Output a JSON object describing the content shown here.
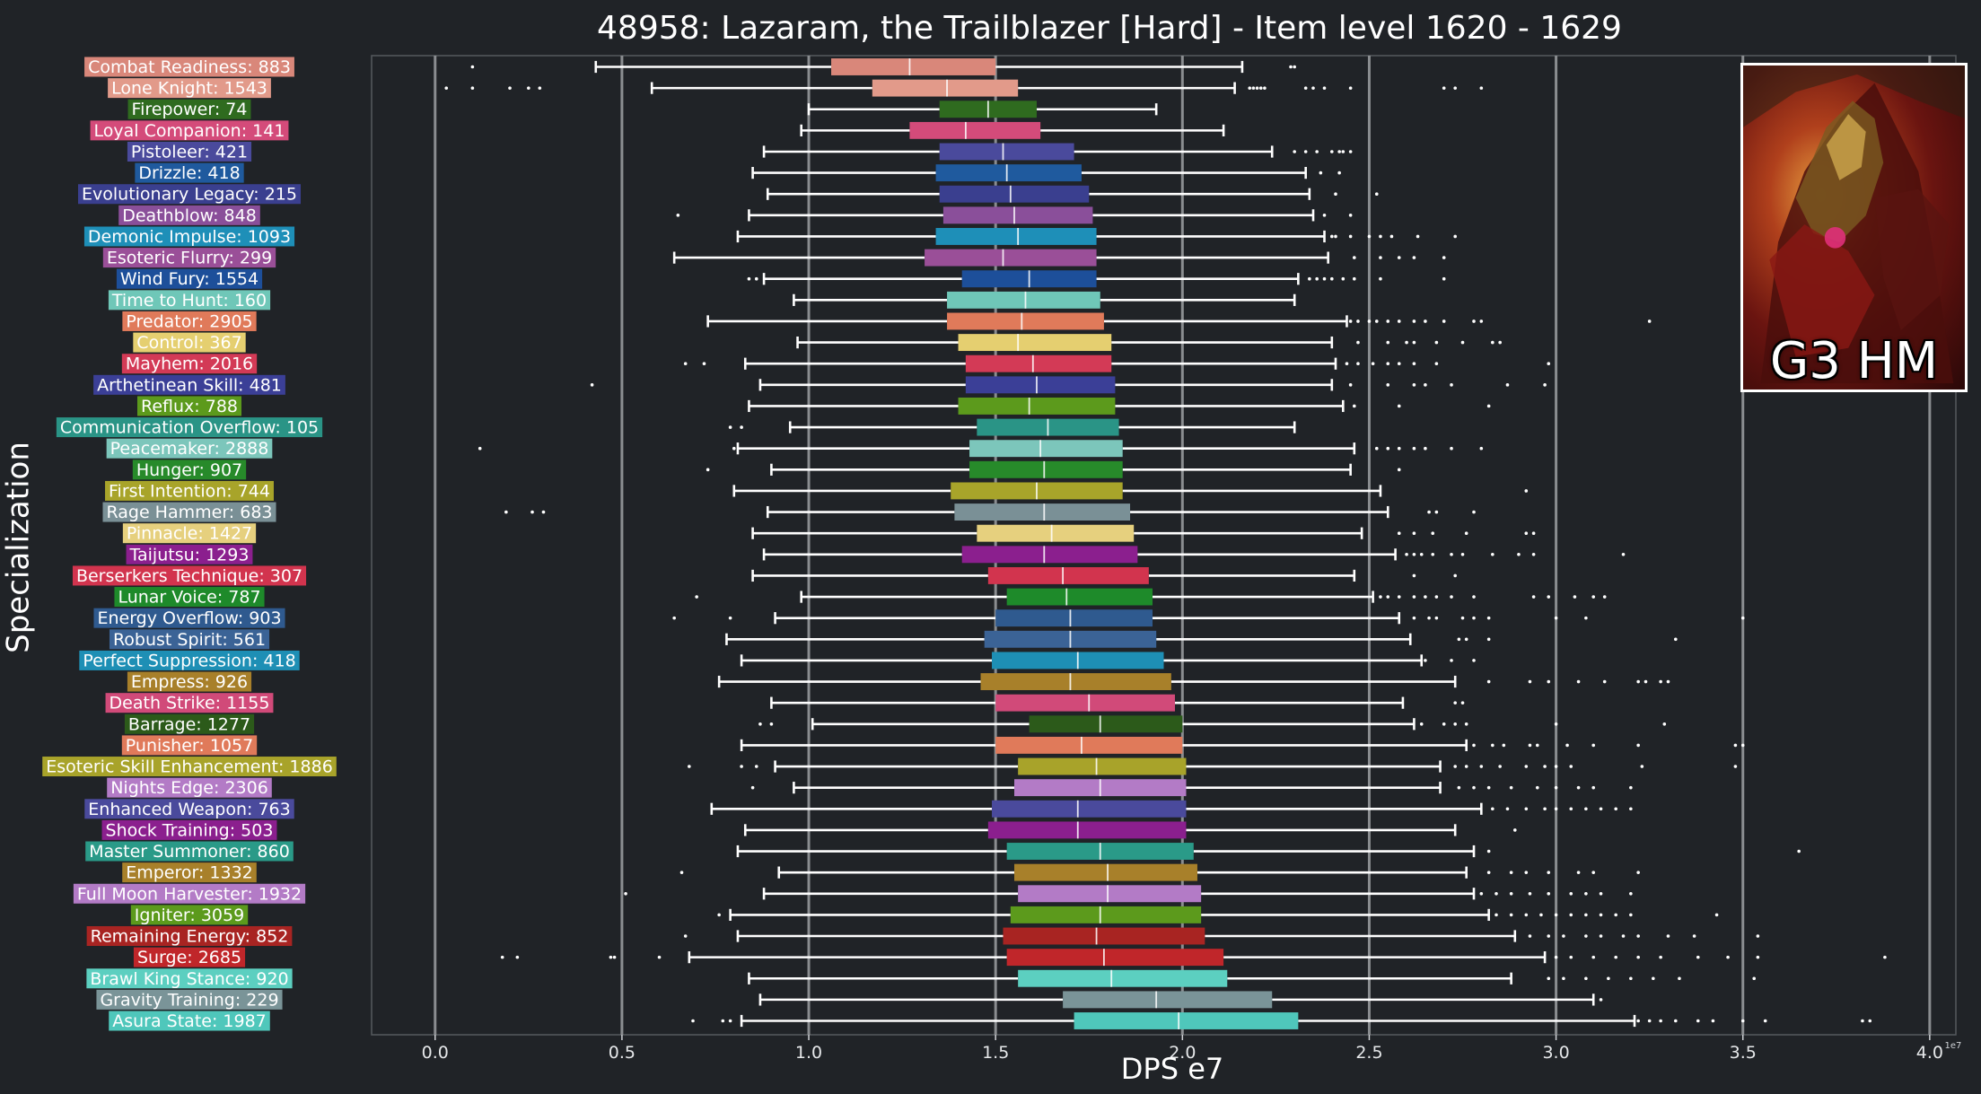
{
  "chart_data": {
    "type": "box",
    "title": "48958: Lazaram, the Trailblazer [Hard] - Item level 1620 - 1629",
    "xlabel": "DPS e7",
    "ylabel": "Specialization",
    "x_scale_label": "1e7",
    "xlim": [
      -0.17,
      4.07
    ],
    "xticks": [
      0.0,
      0.5,
      1.0,
      1.5,
      2.0,
      2.5,
      3.0,
      3.5,
      4.0
    ],
    "xtick_labels": [
      "0.0",
      "0.5",
      "1.0",
      "1.5",
      "2.0",
      "2.5",
      "3.0",
      "3.5",
      "4.0"
    ],
    "grid": "vertical",
    "series": [
      {
        "label": "Combat Readiness: 883",
        "color": "#d9877a",
        "whislo": 0.43,
        "q1": 1.06,
        "median": 1.27,
        "q3": 1.5,
        "whishi": 2.16,
        "fliers": [
          0.1,
          2.29,
          2.3
        ]
      },
      {
        "label": "Lone Knight: 1543",
        "color": "#e29a8a",
        "whislo": 0.58,
        "q1": 1.17,
        "median": 1.37,
        "q3": 1.56,
        "whishi": 2.14,
        "fliers": [
          0.03,
          0.1,
          0.2,
          0.25,
          0.28,
          2.18,
          2.19,
          2.2,
          2.21,
          2.22,
          2.33,
          2.35,
          2.38,
          2.45,
          2.7,
          2.73,
          2.8
        ]
      },
      {
        "label": "Firepower: 74",
        "color": "#2f6b1f",
        "whislo": 1.0,
        "q1": 1.35,
        "median": 1.48,
        "q3": 1.61,
        "whishi": 1.93,
        "fliers": []
      },
      {
        "label": "Loyal Companion: 141",
        "color": "#d44b7a",
        "whislo": 0.98,
        "q1": 1.27,
        "median": 1.42,
        "q3": 1.62,
        "whishi": 2.11,
        "fliers": []
      },
      {
        "label": "Pistoleer: 421",
        "color": "#4a4a9c",
        "whislo": 0.88,
        "q1": 1.35,
        "median": 1.52,
        "q3": 1.71,
        "whishi": 2.24,
        "fliers": [
          2.3,
          2.33,
          2.36,
          2.4,
          2.42,
          2.43,
          2.45
        ]
      },
      {
        "label": "Drizzle: 418",
        "color": "#1f5a9e",
        "whislo": 0.85,
        "q1": 1.34,
        "median": 1.53,
        "q3": 1.73,
        "whishi": 2.33,
        "fliers": [
          2.37,
          2.42
        ]
      },
      {
        "label": "Evolutionary Legacy: 215",
        "color": "#3a3f8f",
        "whislo": 0.89,
        "q1": 1.35,
        "median": 1.54,
        "q3": 1.75,
        "whishi": 2.34,
        "fliers": [
          2.41,
          2.52
        ]
      },
      {
        "label": "Deathblow: 848",
        "color": "#8a4f9a",
        "whislo": 0.84,
        "q1": 1.36,
        "median": 1.55,
        "q3": 1.76,
        "whishi": 2.35,
        "fliers": [
          0.65,
          2.38,
          2.45
        ]
      },
      {
        "label": "Demonic Impulse: 1093",
        "color": "#1e8fb8",
        "whislo": 0.81,
        "q1": 1.34,
        "median": 1.56,
        "q3": 1.77,
        "whishi": 2.38,
        "fliers": [
          2.4,
          2.41,
          2.45,
          2.5,
          2.53,
          2.56,
          2.63,
          2.73
        ]
      },
      {
        "label": "Esoteric Flurry: 299",
        "color": "#9a4f98",
        "whislo": 0.64,
        "q1": 1.31,
        "median": 1.52,
        "q3": 1.77,
        "whishi": 2.39,
        "fliers": [
          2.46,
          2.53,
          2.58,
          2.62,
          2.7
        ]
      },
      {
        "label": "Wind Fury: 1554",
        "color": "#1d4f9a",
        "whislo": 0.88,
        "q1": 1.41,
        "median": 1.59,
        "q3": 1.77,
        "whishi": 2.31,
        "fliers": [
          0.84,
          0.86,
          2.34,
          2.36,
          2.38,
          2.4,
          2.43,
          2.46,
          2.53,
          2.7
        ]
      },
      {
        "label": "Time to Hunt: 160",
        "color": "#6fc7b8",
        "whislo": 0.96,
        "q1": 1.37,
        "median": 1.58,
        "q3": 1.78,
        "whishi": 2.3,
        "fliers": []
      },
      {
        "label": "Predator: 2905",
        "color": "#e07a5a",
        "whislo": 0.73,
        "q1": 1.37,
        "median": 1.57,
        "q3": 1.79,
        "whishi": 2.44,
        "fliers": [
          2.45,
          2.47,
          2.5,
          2.52,
          2.55,
          2.58,
          2.62,
          2.65,
          2.7,
          2.78,
          2.8,
          3.25
        ]
      },
      {
        "label": "Control: 367",
        "color": "#e5cf70",
        "whislo": 0.97,
        "q1": 1.4,
        "median": 1.56,
        "q3": 1.81,
        "whishi": 2.4,
        "fliers": [
          2.47,
          2.55,
          2.6,
          2.62,
          2.68,
          2.75,
          2.83,
          2.85
        ]
      },
      {
        "label": "Mayhem: 2016",
        "color": "#d33a56",
        "whislo": 0.83,
        "q1": 1.42,
        "median": 1.6,
        "q3": 1.81,
        "whishi": 2.41,
        "fliers": [
          0.67,
          0.72,
          2.44,
          2.47,
          2.51,
          2.55,
          2.58,
          2.62,
          2.68,
          2.98
        ]
      },
      {
        "label": "Arthetinean Skill: 481",
        "color": "#3b3f97",
        "whislo": 0.87,
        "q1": 1.42,
        "median": 1.61,
        "q3": 1.82,
        "whishi": 2.4,
        "fliers": [
          0.42,
          2.45,
          2.55,
          2.62,
          2.65,
          2.72,
          2.87,
          2.97
        ]
      },
      {
        "label": "Reflux: 788",
        "color": "#5c9a1c",
        "whislo": 0.84,
        "q1": 1.4,
        "median": 1.59,
        "q3": 1.82,
        "whishi": 2.43,
        "fliers": [
          2.46,
          2.58,
          2.82
        ]
      },
      {
        "label": "Communication Overflow: 105",
        "color": "#2a9486",
        "whislo": 0.95,
        "q1": 1.45,
        "median": 1.64,
        "q3": 1.83,
        "whishi": 2.3,
        "fliers": [
          0.79,
          0.82
        ]
      },
      {
        "label": "Peacemaker: 2888",
        "color": "#7cc6bb",
        "whislo": 0.81,
        "q1": 1.43,
        "median": 1.62,
        "q3": 1.84,
        "whishi": 2.46,
        "fliers": [
          0.12,
          0.8,
          2.52,
          2.55,
          2.58,
          2.62,
          2.65,
          2.72,
          2.8
        ]
      },
      {
        "label": "Hunger: 907",
        "color": "#278a2a",
        "whislo": 0.9,
        "q1": 1.43,
        "median": 1.63,
        "q3": 1.84,
        "whishi": 2.45,
        "fliers": [
          0.73,
          2.58
        ]
      },
      {
        "label": "First Intention: 744",
        "color": "#a8a42a",
        "whislo": 0.8,
        "q1": 1.38,
        "median": 1.61,
        "q3": 1.84,
        "whishi": 2.53,
        "fliers": [
          2.92
        ]
      },
      {
        "label": "Rage Hammer: 683",
        "color": "#7a9096",
        "whislo": 0.89,
        "q1": 1.39,
        "median": 1.63,
        "q3": 1.86,
        "whishi": 2.55,
        "fliers": [
          0.19,
          0.26,
          0.29,
          2.66,
          2.68,
          2.78
        ]
      },
      {
        "label": "Pinnacle: 1427",
        "color": "#e6d07e",
        "whislo": 0.85,
        "q1": 1.45,
        "median": 1.65,
        "q3": 1.87,
        "whishi": 2.48,
        "fliers": [
          2.58,
          2.62,
          2.67,
          2.76,
          2.92,
          2.94
        ]
      },
      {
        "label": "Taijutsu: 1293",
        "color": "#8b1f8e",
        "whislo": 0.88,
        "q1": 1.41,
        "median": 1.63,
        "q3": 1.88,
        "whishi": 2.57,
        "fliers": [
          2.6,
          2.62,
          2.64,
          2.67,
          2.72,
          2.75,
          2.83,
          2.9,
          2.94,
          3.18
        ]
      },
      {
        "label": "Berserkers Technique: 307",
        "color": "#d2344e",
        "whislo": 0.85,
        "q1": 1.48,
        "median": 1.68,
        "q3": 1.91,
        "whishi": 2.46,
        "fliers": [
          2.62,
          2.73
        ]
      },
      {
        "label": "Lunar Voice: 787",
        "color": "#1e8a2a",
        "whislo": 0.98,
        "q1": 1.53,
        "median": 1.69,
        "q3": 1.92,
        "whishi": 2.51,
        "fliers": [
          0.7,
          2.53,
          2.55,
          2.58,
          2.62,
          2.65,
          2.68,
          2.72,
          2.78,
          2.94,
          2.98,
          3.05,
          3.1,
          3.13
        ]
      },
      {
        "label": "Energy Overflow: 903",
        "color": "#2f5a8f",
        "whislo": 0.91,
        "q1": 1.5,
        "median": 1.7,
        "q3": 1.92,
        "whishi": 2.58,
        "fliers": [
          0.64,
          0.79,
          2.62,
          2.66,
          2.68,
          2.75,
          2.78,
          2.82,
          3.0,
          3.08,
          3.5
        ]
      },
      {
        "label": "Robust Spirit: 561",
        "color": "#3b6396",
        "whislo": 0.78,
        "q1": 1.47,
        "median": 1.7,
        "q3": 1.93,
        "whishi": 2.61,
        "fliers": [
          2.74,
          2.76,
          2.82,
          3.32
        ]
      },
      {
        "label": "Perfect Suppression: 418",
        "color": "#1e8fb5",
        "whislo": 0.82,
        "q1": 1.49,
        "median": 1.72,
        "q3": 1.95,
        "whishi": 2.64,
        "fliers": [
          2.65,
          2.72,
          2.78
        ]
      },
      {
        "label": "Empress: 926",
        "color": "#a8802a",
        "whislo": 0.76,
        "q1": 1.46,
        "median": 1.7,
        "q3": 1.97,
        "whishi": 2.73,
        "fliers": [
          2.82,
          2.93,
          2.98,
          3.06,
          3.13,
          3.22,
          3.24,
          3.28,
          3.3
        ]
      },
      {
        "label": "Death Strike: 1155",
        "color": "#d14a79",
        "whislo": 0.9,
        "q1": 1.5,
        "median": 1.75,
        "q3": 1.98,
        "whishi": 2.59,
        "fliers": [
          2.73,
          2.75
        ]
      },
      {
        "label": "Barrage: 1277",
        "color": "#2c5a1a",
        "whislo": 1.01,
        "q1": 1.59,
        "median": 1.78,
        "q3": 2.0,
        "whishi": 2.62,
        "fliers": [
          0.87,
          0.9,
          2.64,
          2.7,
          2.73,
          2.76,
          3.0,
          3.29
        ]
      },
      {
        "label": "Punisher: 1057",
        "color": "#e07a5a",
        "whislo": 0.82,
        "q1": 1.5,
        "median": 1.73,
        "q3": 2.0,
        "whishi": 2.76,
        "fliers": [
          2.78,
          2.83,
          2.86,
          2.93,
          2.95,
          3.03,
          3.1,
          3.22,
          3.48,
          3.5
        ]
      },
      {
        "label": "Esoteric Skill Enhancement: 1886",
        "color": "#a8a32a",
        "whislo": 0.91,
        "q1": 1.56,
        "median": 1.77,
        "q3": 2.01,
        "whishi": 2.69,
        "fliers": [
          0.68,
          0.82,
          0.86,
          2.73,
          2.76,
          2.8,
          2.85,
          2.92,
          2.97,
          3.0,
          3.04,
          3.23,
          3.48
        ]
      },
      {
        "label": "Nights Edge: 2306",
        "color": "#b37bc6",
        "whislo": 0.96,
        "q1": 1.55,
        "median": 1.78,
        "q3": 2.01,
        "whishi": 2.69,
        "fliers": [
          0.85,
          2.74,
          2.78,
          2.82,
          2.88,
          2.95,
          3.0,
          3.06,
          3.1,
          3.2
        ]
      },
      {
        "label": "Enhanced Weapon: 763",
        "color": "#4a4a9c",
        "whislo": 0.74,
        "q1": 1.49,
        "median": 1.72,
        "q3": 2.01,
        "whishi": 2.8,
        "fliers": [
          2.83,
          2.87,
          2.92,
          2.97,
          3.0,
          3.04,
          3.08,
          3.12,
          3.16,
          3.2
        ]
      },
      {
        "label": "Shock Training: 503",
        "color": "#8b1f8e",
        "whislo": 0.83,
        "q1": 1.48,
        "median": 1.72,
        "q3": 2.01,
        "whishi": 2.73,
        "fliers": [
          2.89
        ]
      },
      {
        "label": "Master Summoner: 860",
        "color": "#2a9a88",
        "whislo": 0.81,
        "q1": 1.53,
        "median": 1.78,
        "q3": 2.03,
        "whishi": 2.78,
        "fliers": [
          2.82,
          3.65
        ]
      },
      {
        "label": "Emperor: 1332",
        "color": "#a8802a",
        "whislo": 0.92,
        "q1": 1.55,
        "median": 1.8,
        "q3": 2.04,
        "whishi": 2.76,
        "fliers": [
          0.66,
          2.82,
          2.88,
          2.92,
          2.98,
          3.06,
          3.1,
          3.22
        ]
      },
      {
        "label": "Full Moon Harvester: 1932",
        "color": "#b37bc6",
        "whislo": 0.88,
        "q1": 1.56,
        "median": 1.8,
        "q3": 2.05,
        "whishi": 2.78,
        "fliers": [
          0.51,
          2.8,
          2.84,
          2.88,
          2.93,
          2.98,
          3.04,
          3.08,
          3.12,
          3.2
        ]
      },
      {
        "label": "Igniter: 3059",
        "color": "#5c9a1c",
        "whislo": 0.79,
        "q1": 1.54,
        "median": 1.78,
        "q3": 2.05,
        "whishi": 2.82,
        "fliers": [
          0.76,
          2.84,
          2.88,
          2.92,
          2.96,
          3.0,
          3.04,
          3.08,
          3.12,
          3.16,
          3.2,
          3.43
        ]
      },
      {
        "label": "Remaining Energy: 852",
        "color": "#a82422",
        "whislo": 0.81,
        "q1": 1.52,
        "median": 1.77,
        "q3": 2.06,
        "whishi": 2.89,
        "fliers": [
          0.67,
          2.93,
          2.98,
          3.02,
          3.08,
          3.12,
          3.18,
          3.22,
          3.3,
          3.37,
          3.54
        ]
      },
      {
        "label": "Surge: 2685",
        "color": "#c0262a",
        "whislo": 0.68,
        "q1": 1.53,
        "median": 1.79,
        "q3": 2.11,
        "whishi": 2.97,
        "fliers": [
          0.18,
          0.22,
          0.47,
          0.48,
          0.6,
          3.0,
          3.04,
          3.1,
          3.16,
          3.22,
          3.28,
          3.38,
          3.46,
          3.54,
          3.88
        ]
      },
      {
        "label": "Brawl King Stance: 920",
        "color": "#5ccfc0",
        "whislo": 0.84,
        "q1": 1.56,
        "median": 1.81,
        "q3": 2.12,
        "whishi": 2.88,
        "fliers": [
          2.98,
          3.02,
          3.08,
          3.14,
          3.2,
          3.26,
          3.33,
          3.53
        ]
      },
      {
        "label": "Gravity Training: 229",
        "color": "#7a9498",
        "whislo": 0.87,
        "q1": 1.68,
        "median": 1.93,
        "q3": 2.24,
        "whishi": 3.1,
        "fliers": [
          3.12
        ]
      },
      {
        "label": "Asura State: 1987",
        "color": "#4fc7bb",
        "whislo": 0.82,
        "q1": 1.71,
        "median": 1.99,
        "q3": 2.31,
        "whishi": 3.21,
        "fliers": [
          0.69,
          0.77,
          0.79,
          3.22,
          3.25,
          3.28,
          3.32,
          3.38,
          3.42,
          3.5,
          3.56,
          3.82,
          3.84
        ]
      }
    ]
  },
  "boss_panel": {
    "caption": "G3 HM"
  }
}
